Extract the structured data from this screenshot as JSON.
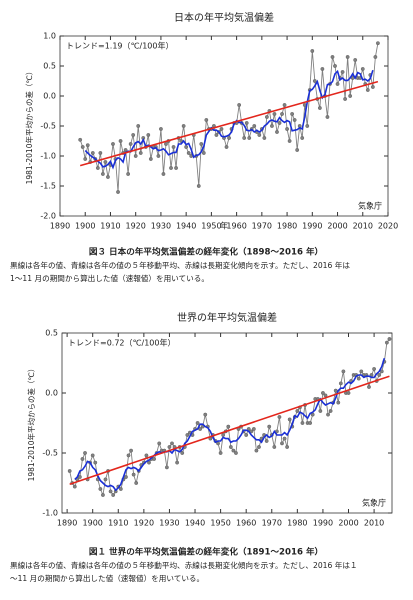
{
  "chart_data": [
    {
      "type": "line",
      "title": "日本の年平均気温偏差",
      "trend_label": "トレンド=1.19（℃/100年）",
      "source": "気象庁",
      "xlabel": "年",
      "ylabel": "1981-2010年平均からの差（℃）",
      "caption": "図３ 日本の年平均気温偏差の経年変化（1898〜2016 年）",
      "notes": [
        "黒線は各年の値、青線は各年の値の５年移動平均、赤線は長期変化傾向を示す。ただし、2016 年は",
        "1〜11 月の期間から算出した値（速報値）を用いている。"
      ],
      "xlim": [
        1890,
        2020
      ],
      "ylim": [
        -2,
        1
      ],
      "xticks": [
        1890,
        1900,
        1910,
        1920,
        1930,
        1940,
        1950,
        1960,
        1970,
        1980,
        1990,
        2000,
        2010,
        2020
      ],
      "yticks": [
        {
          "value": -2,
          "label": "-2.0"
        },
        -1.5,
        {
          "value": -1,
          "label": "-1.0"
        },
        -0.5,
        {
          "value": 0,
          "label": "0.0"
        },
        0.5,
        {
          "value": 1,
          "label": "1.0"
        }
      ],
      "x": [
        1898,
        1899,
        1900,
        1901,
        1902,
        1903,
        1904,
        1905,
        1906,
        1907,
        1908,
        1909,
        1910,
        1911,
        1912,
        1913,
        1914,
        1915,
        1916,
        1917,
        1918,
        1919,
        1920,
        1921,
        1922,
        1923,
        1924,
        1925,
        1926,
        1927,
        1928,
        1929,
        1930,
        1931,
        1932,
        1933,
        1934,
        1935,
        1936,
        1937,
        1938,
        1939,
        1940,
        1941,
        1942,
        1943,
        1944,
        1945,
        1946,
        1947,
        1948,
        1949,
        1950,
        1951,
        1952,
        1953,
        1954,
        1955,
        1956,
        1957,
        1958,
        1959,
        1960,
        1961,
        1962,
        1963,
        1964,
        1965,
        1966,
        1967,
        1968,
        1969,
        1970,
        1971,
        1972,
        1973,
        1974,
        1975,
        1976,
        1977,
        1978,
        1979,
        1980,
        1981,
        1982,
        1983,
        1984,
        1985,
        1986,
        1987,
        1988,
        1989,
        1990,
        1991,
        1992,
        1993,
        1994,
        1995,
        1996,
        1997,
        1998,
        1999,
        2000,
        2001,
        2002,
        2003,
        2004,
        2005,
        2006,
        2007,
        2008,
        2009,
        2010,
        2011,
        2012,
        2013,
        2014,
        2015,
        2016
      ],
      "series": [
        {
          "color": "#808080",
          "markers": true,
          "values": [
            -0.73,
            -0.85,
            -1.05,
            -0.82,
            -1.1,
            -0.95,
            -1.05,
            -1.2,
            -0.95,
            -1.3,
            -1.1,
            -1.35,
            -1.15,
            -0.8,
            -1.05,
            -1.6,
            -0.75,
            -0.95,
            -0.9,
            -1.3,
            -0.8,
            -0.65,
            -1.0,
            -0.5,
            -0.95,
            -0.7,
            -0.85,
            -0.65,
            -1.05,
            -0.85,
            -0.85,
            -1.0,
            -0.55,
            -1.3,
            -0.8,
            -0.75,
            -1.2,
            -0.85,
            -1.2,
            -0.7,
            -0.75,
            -0.5,
            -0.85,
            -0.95,
            -1.0,
            -0.65,
            -1.0,
            -1.5,
            -0.8,
            -0.95,
            -0.4,
            -0.55,
            -0.55,
            -0.5,
            -0.65,
            -0.6,
            -0.55,
            -0.7,
            -0.85,
            -0.7,
            -0.55,
            -0.45,
            -0.45,
            -0.15,
            -0.45,
            -0.7,
            -0.45,
            -0.7,
            -0.55,
            -0.5,
            -0.6,
            -0.65,
            -0.55,
            -0.7,
            -0.35,
            -0.25,
            -0.5,
            -0.3,
            -0.6,
            -0.45,
            -0.3,
            -0.15,
            -0.55,
            -0.75,
            -0.3,
            -0.4,
            -0.9,
            -0.5,
            -0.7,
            -0.15,
            -0.5,
            0.1,
            0.75,
            0.25,
            -0.05,
            -0.2,
            0.45,
            0.0,
            -0.35,
            0.2,
            0.65,
            0.5,
            0.2,
            0.3,
            0.4,
            -0.05,
            0.65,
            0.0,
            0.3,
            0.6,
            0.3,
            0.3,
            0.45,
            0.2,
            0.1,
            0.35,
            0.15,
            0.65,
            0.88
          ]
        },
        {
          "color": "#1a2fd6",
          "markers": false,
          "values": [
            null,
            null,
            -0.91,
            -0.95,
            -0.99,
            -1.02,
            -1.05,
            -1.09,
            -1.12,
            -1.18,
            -1.17,
            -1.14,
            -1.09,
            -1.19,
            -1.07,
            -1.03,
            -1.05,
            -1.1,
            -0.94,
            -0.92,
            -0.93,
            -0.85,
            -0.78,
            -0.76,
            -0.8,
            -0.73,
            -0.84,
            -0.82,
            -0.85,
            -0.88,
            -0.86,
            -0.91,
            -0.9,
            -0.88,
            -0.92,
            -0.98,
            -0.96,
            -0.94,
            -0.94,
            -0.8,
            -0.8,
            -0.75,
            -0.81,
            -0.79,
            -0.89,
            -1.02,
            -0.99,
            -0.98,
            -0.93,
            -0.84,
            -0.65,
            -0.59,
            -0.53,
            -0.57,
            -0.57,
            -0.6,
            -0.67,
            -0.68,
            -0.67,
            -0.65,
            -0.6,
            -0.46,
            -0.41,
            -0.44,
            -0.44,
            -0.49,
            -0.57,
            -0.58,
            -0.56,
            -0.6,
            -0.57,
            -0.6,
            -0.57,
            -0.5,
            -0.47,
            -0.42,
            -0.4,
            -0.42,
            -0.43,
            -0.36,
            -0.41,
            -0.44,
            -0.41,
            -0.43,
            -0.58,
            -0.57,
            -0.56,
            -0.53,
            -0.55,
            -0.35,
            -0.1,
            0.09,
            0.11,
            0.17,
            0.24,
            0.09,
            -0.03,
            0.02,
            0.19,
            0.2,
            0.24,
            0.37,
            0.41,
            0.27,
            0.3,
            0.26,
            0.26,
            0.3,
            0.37,
            0.3,
            0.39,
            0.37,
            0.27,
            0.28,
            0.25,
            0.29,
            0.43,
            null,
            null
          ]
        }
      ],
      "trend": {
        "color": "#e3261c",
        "x": [
          1898,
          2016
        ],
        "values": [
          -1.16,
          0.24
        ]
      }
    },
    {
      "type": "line",
      "title": "世界の年平均気温偏差",
      "trend_label": "トレンド=0.72（℃/100年）",
      "source": "気象庁",
      "ylabel": "1981-2010年平均からの差（℃）",
      "caption": "図１ 世界の年平均気温偏差の経年変化（1891〜2016 年）",
      "notes": [
        "黒線は各年の値、青線は各年の値の５年移動平均、赤線は長期変化傾向を示す。ただし、2016 年は１",
        "〜11 月の期間から算出した値（速報値）を用いている。"
      ],
      "xlim": [
        1888,
        2017
      ],
      "ylim": [
        -1,
        0.5
      ],
      "xticks": [
        1890,
        1900,
        1910,
        1920,
        1930,
        1940,
        1950,
        1960,
        1970,
        1980,
        1990,
        2000,
        2010
      ],
      "yticks": [
        {
          "value": -1,
          "label": "-1.0"
        },
        -0.5,
        {
          "value": 0,
          "label": "0.0"
        },
        0.5
      ],
      "x": [
        1891,
        1892,
        1893,
        1894,
        1895,
        1896,
        1897,
        1898,
        1899,
        1900,
        1901,
        1902,
        1903,
        1904,
        1905,
        1906,
        1907,
        1908,
        1909,
        1910,
        1911,
        1912,
        1913,
        1914,
        1915,
        1916,
        1917,
        1918,
        1919,
        1920,
        1921,
        1922,
        1923,
        1924,
        1925,
        1926,
        1927,
        1928,
        1929,
        1930,
        1931,
        1932,
        1933,
        1934,
        1935,
        1936,
        1937,
        1938,
        1939,
        1940,
        1941,
        1942,
        1943,
        1944,
        1945,
        1946,
        1947,
        1948,
        1949,
        1950,
        1951,
        1952,
        1953,
        1954,
        1955,
        1956,
        1957,
        1958,
        1959,
        1960,
        1961,
        1962,
        1963,
        1964,
        1965,
        1966,
        1967,
        1968,
        1969,
        1970,
        1971,
        1972,
        1973,
        1974,
        1975,
        1976,
        1977,
        1978,
        1979,
        1980,
        1981,
        1982,
        1983,
        1984,
        1985,
        1986,
        1987,
        1988,
        1989,
        1990,
        1991,
        1992,
        1993,
        1994,
        1995,
        1996,
        1997,
        1998,
        1999,
        2000,
        2001,
        2002,
        2003,
        2004,
        2005,
        2006,
        2007,
        2008,
        2009,
        2010,
        2011,
        2012,
        2013,
        2014,
        2015,
        2016
      ],
      "series": [
        {
          "color": "#808080",
          "markers": true,
          "values": [
            -0.65,
            -0.75,
            -0.78,
            -0.72,
            -0.7,
            -0.55,
            -0.5,
            -0.72,
            -0.58,
            -0.52,
            -0.58,
            -0.72,
            -0.8,
            -0.85,
            -0.72,
            -0.65,
            -0.82,
            -0.85,
            -0.82,
            -0.78,
            -0.8,
            -0.72,
            -0.7,
            -0.52,
            -0.48,
            -0.68,
            -0.75,
            -0.65,
            -0.6,
            -0.58,
            -0.52,
            -0.58,
            -0.55,
            -0.55,
            -0.5,
            -0.42,
            -0.48,
            -0.48,
            -0.62,
            -0.45,
            -0.42,
            -0.45,
            -0.58,
            -0.45,
            -0.5,
            -0.45,
            -0.35,
            -0.33,
            -0.35,
            -0.3,
            -0.25,
            -0.3,
            -0.28,
            -0.18,
            -0.28,
            -0.38,
            -0.35,
            -0.4,
            -0.42,
            -0.5,
            -0.35,
            -0.32,
            -0.28,
            -0.45,
            -0.48,
            -0.5,
            -0.3,
            -0.28,
            -0.32,
            -0.35,
            -0.3,
            -0.32,
            -0.3,
            -0.48,
            -0.45,
            -0.38,
            -0.35,
            -0.4,
            -0.28,
            -0.35,
            -0.45,
            -0.32,
            -0.2,
            -0.42,
            -0.38,
            -0.45,
            -0.22,
            -0.28,
            -0.2,
            -0.15,
            -0.12,
            -0.25,
            -0.1,
            -0.25,
            -0.25,
            -0.18,
            -0.05,
            -0.05,
            -0.15,
            0.0,
            -0.02,
            -0.18,
            -0.15,
            -0.08,
            0.02,
            -0.08,
            0.08,
            0.18,
            0.0,
            0.0,
            0.1,
            0.15,
            0.15,
            0.12,
            0.18,
            0.15,
            0.15,
            0.05,
            0.15,
            0.2,
            0.1,
            0.15,
            0.18,
            0.26,
            0.42,
            0.45
          ]
        },
        {
          "color": "#1a2fd6",
          "markers": false,
          "values": [
            null,
            null,
            -0.72,
            -0.7,
            -0.65,
            -0.64,
            -0.61,
            -0.57,
            -0.58,
            -0.62,
            -0.64,
            -0.69,
            -0.73,
            -0.75,
            -0.77,
            -0.78,
            -0.77,
            -0.78,
            -0.81,
            -0.79,
            -0.76,
            -0.7,
            -0.64,
            -0.62,
            -0.63,
            -0.62,
            -0.63,
            -0.65,
            -0.62,
            -0.59,
            -0.57,
            -0.56,
            -0.54,
            -0.52,
            -0.5,
            -0.49,
            -0.5,
            -0.49,
            -0.49,
            -0.48,
            -0.5,
            -0.47,
            -0.48,
            -0.49,
            -0.47,
            -0.42,
            -0.4,
            -0.36,
            -0.32,
            -0.31,
            -0.3,
            -0.26,
            -0.26,
            -0.28,
            -0.29,
            -0.32,
            -0.37,
            -0.41,
            -0.4,
            -0.4,
            -0.37,
            -0.38,
            -0.38,
            -0.41,
            -0.4,
            -0.4,
            -0.38,
            -0.35,
            -0.31,
            -0.31,
            -0.32,
            -0.35,
            -0.37,
            -0.39,
            -0.39,
            -0.41,
            -0.37,
            -0.35,
            -0.37,
            -0.36,
            -0.32,
            -0.35,
            -0.35,
            -0.35,
            -0.33,
            -0.35,
            -0.31,
            -0.26,
            -0.19,
            -0.2,
            -0.16,
            -0.17,
            -0.19,
            -0.21,
            -0.17,
            -0.16,
            -0.14,
            -0.09,
            -0.05,
            -0.08,
            -0.1,
            -0.09,
            -0.08,
            -0.09,
            -0.04,
            0.02,
            0.04,
            0.04,
            0.07,
            0.09,
            0.08,
            0.1,
            0.14,
            0.15,
            0.15,
            0.13,
            0.14,
            0.14,
            0.13,
            0.13,
            0.16,
            0.18,
            0.22,
            0.29,
            null,
            null
          ]
        }
      ],
      "trend": {
        "color": "#e3261c",
        "x": [
          1891,
          2016
        ],
        "values": [
          -0.76,
          0.14
        ]
      }
    }
  ]
}
